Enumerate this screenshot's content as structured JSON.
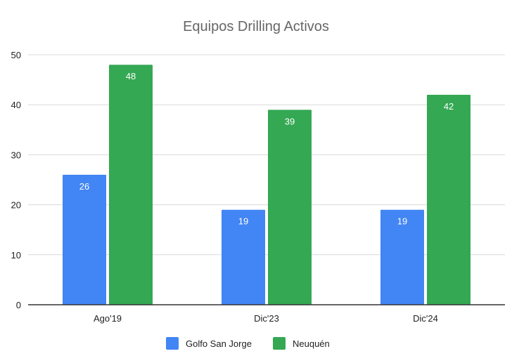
{
  "chart_data": {
    "type": "bar",
    "title": "Equipos Drilling Activos",
    "xlabel": "",
    "ylabel": "",
    "categories": [
      "Ago'19",
      "Dic'23",
      "Dic'24"
    ],
    "series": [
      {
        "name": "Golfo San Jorge",
        "values": [
          26,
          19,
          19
        ],
        "color": "#4285F4"
      },
      {
        "name": "Neuquén",
        "values": [
          48,
          39,
          42
        ],
        "color": "#34A853"
      }
    ],
    "ylim": [
      0,
      50
    ],
    "yticks": [
      0,
      10,
      20,
      30,
      40,
      50
    ],
    "grid": true,
    "legend": "bottom",
    "data_labels": true
  }
}
